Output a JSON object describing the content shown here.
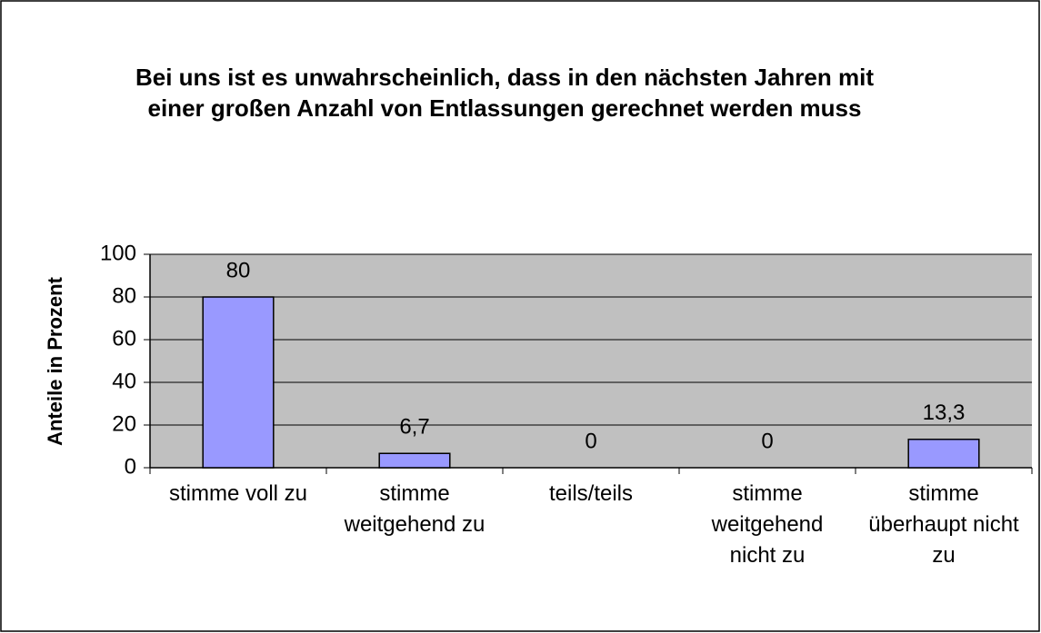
{
  "chart_data": {
    "type": "bar",
    "title": "Bei uns ist es unwahrscheinlich, dass in den nächsten Jahren mit einer großen Anzahl von Entlassungen gerechnet werden muss",
    "y_label": "Anteile in Prozent",
    "categories": [
      "stimme voll zu",
      "stimme weitgehend zu",
      "teils/teils",
      "stimme weitgehend nicht zu",
      "stimme überhaupt nicht zu"
    ],
    "values": [
      80,
      6.7,
      0,
      0,
      13.3
    ],
    "value_labels": [
      "80",
      "6,7",
      "0",
      "0",
      "13,3"
    ],
    "color": "#9999ff",
    "ylim": [
      0,
      100
    ],
    "yticks": [
      0,
      20,
      40,
      60,
      80,
      100
    ],
    "grid": true
  }
}
